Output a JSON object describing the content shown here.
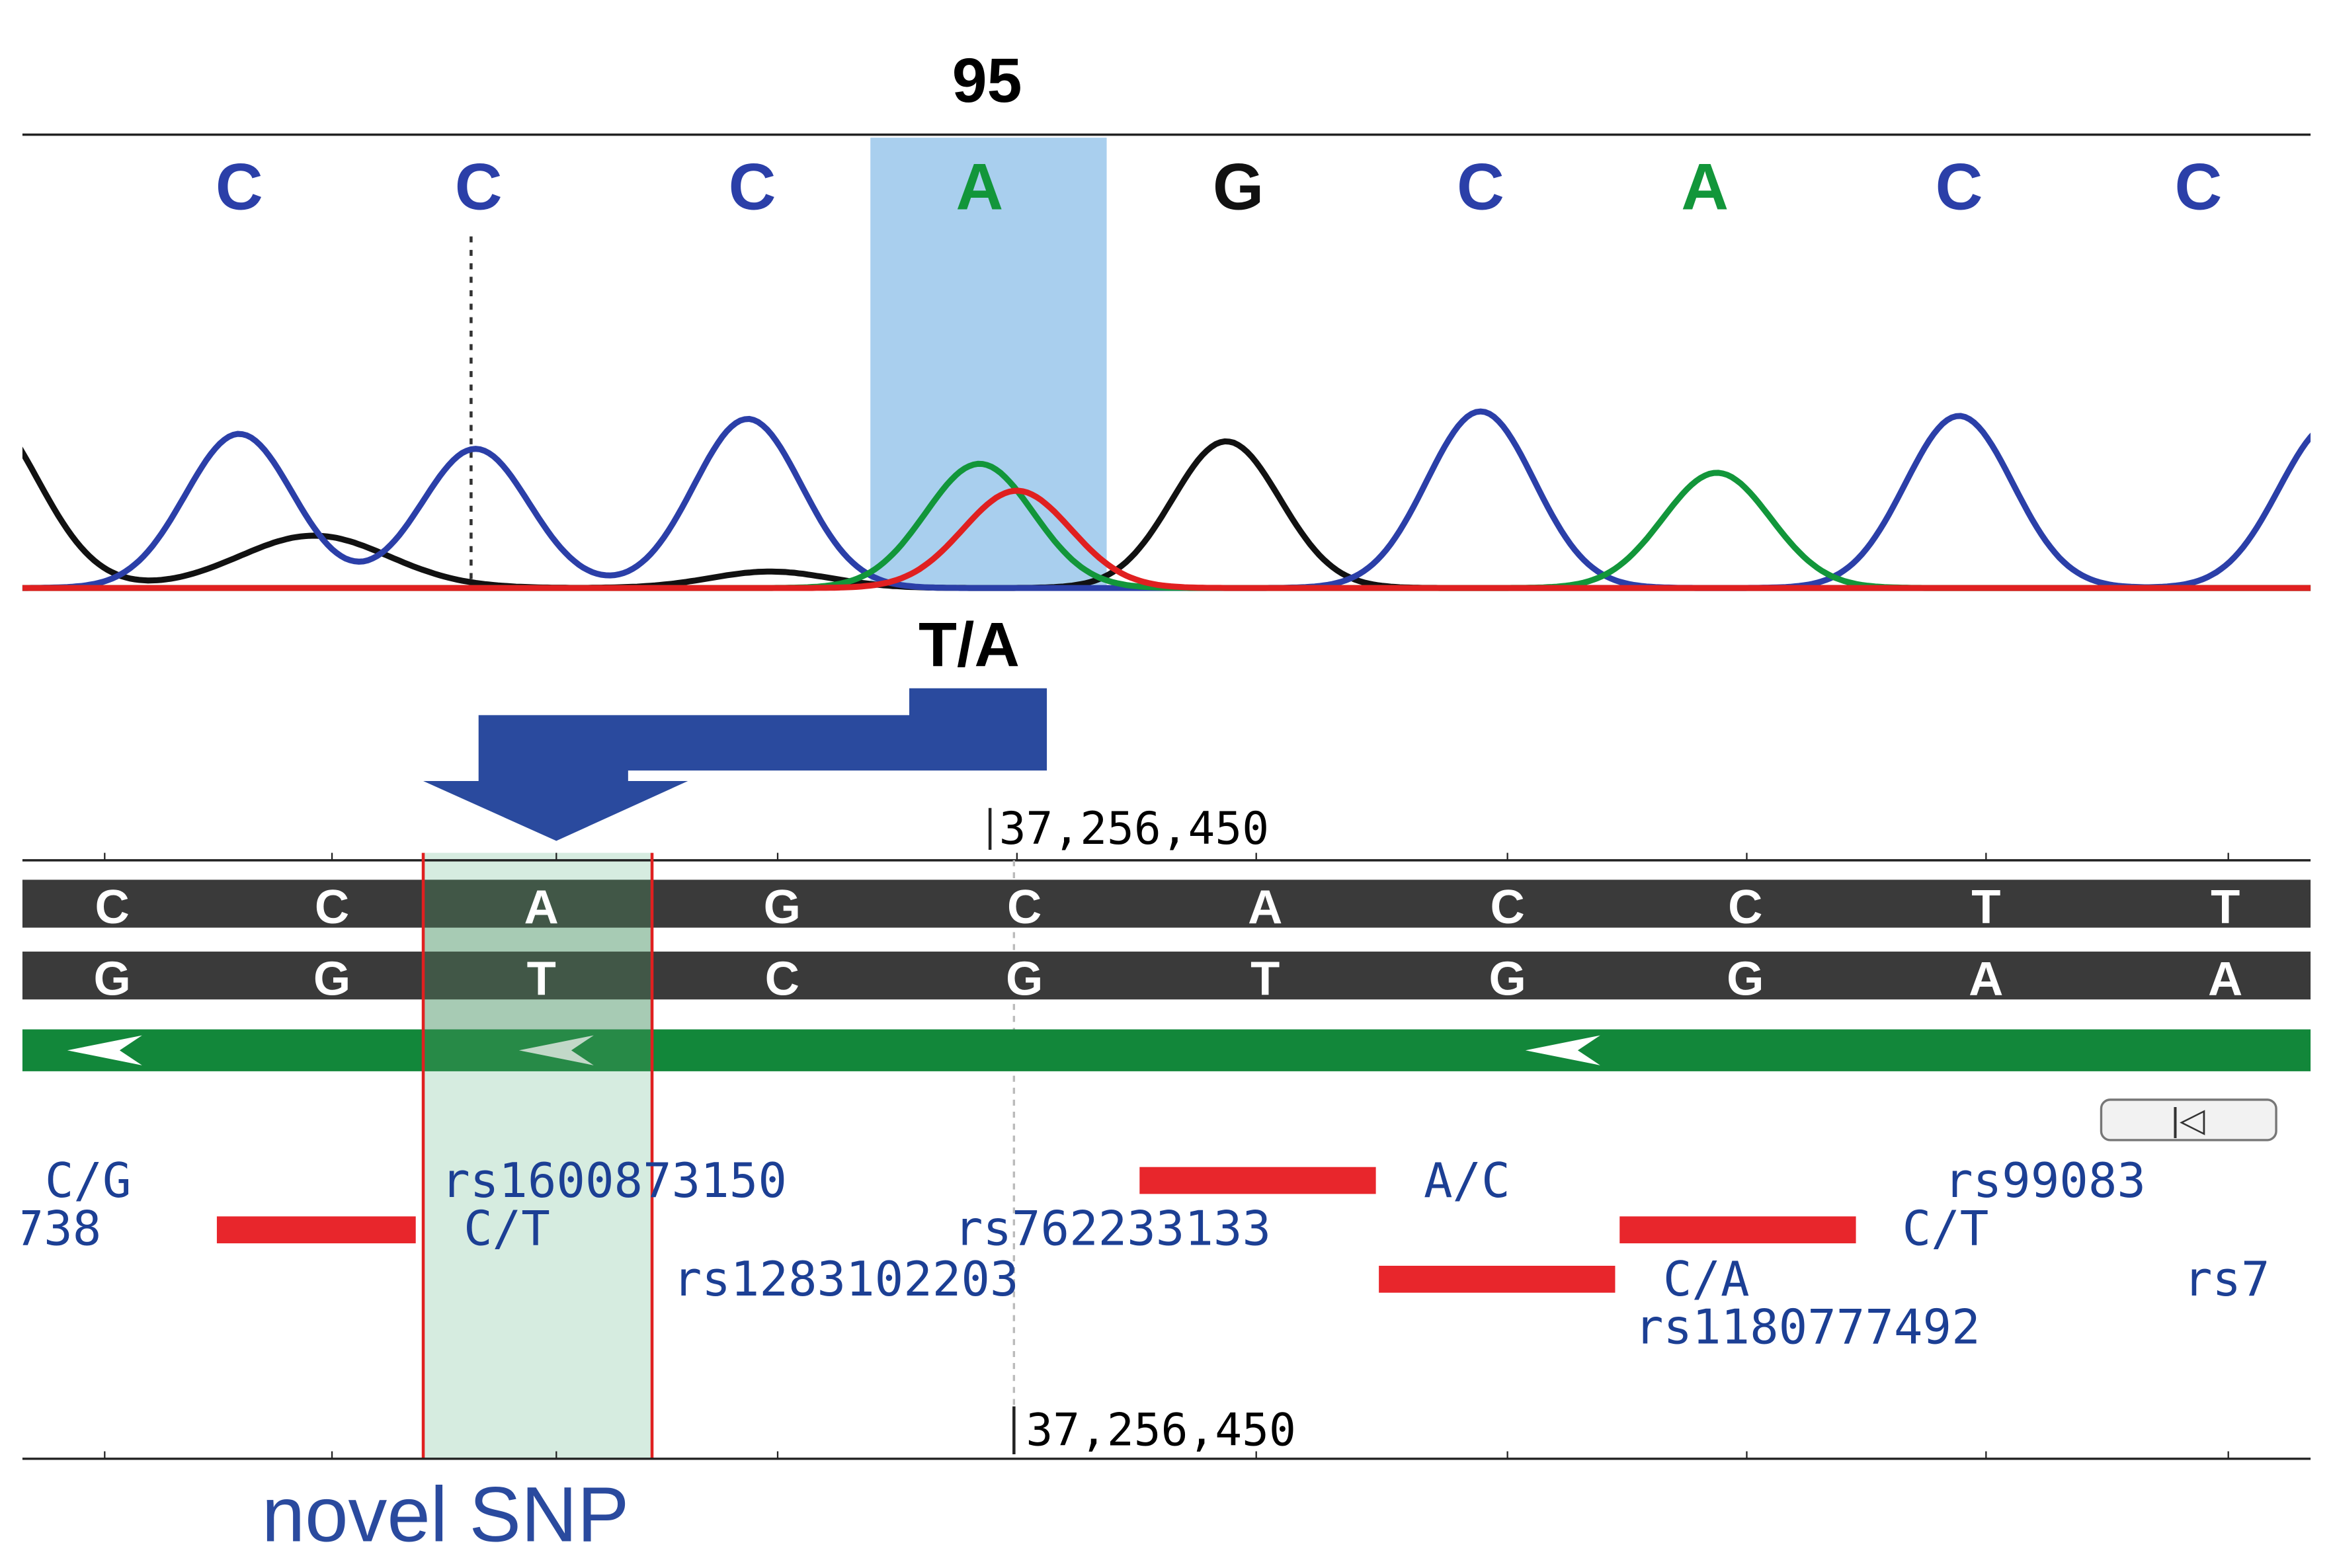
{
  "header": {
    "position": "95"
  },
  "chromatogram": {
    "bases": [
      "C",
      "C",
      "C",
      "A",
      "G",
      "C",
      "A",
      "C",
      "C"
    ],
    "call": "T/A"
  },
  "browser": {
    "coordinate_top": "37,256,450",
    "forward": [
      "C",
      "C",
      "A",
      "G",
      "C",
      "A",
      "C",
      "C",
      "T",
      "T"
    ],
    "reverse": [
      "G",
      "G",
      "T",
      "C",
      "G",
      "T",
      "G",
      "G",
      "A",
      "A"
    ],
    "button": "|◁",
    "variants": [
      "C/G",
      "rs1600873150",
      "A/C",
      "rs99083",
      "738",
      "C/T",
      "rs762233133",
      "C/T",
      "rs1283102203",
      "C/A",
      "rs7",
      "rs1180777492"
    ],
    "coordinate_bottom": "37,256,450"
  },
  "annotation": "novel SNP"
}
